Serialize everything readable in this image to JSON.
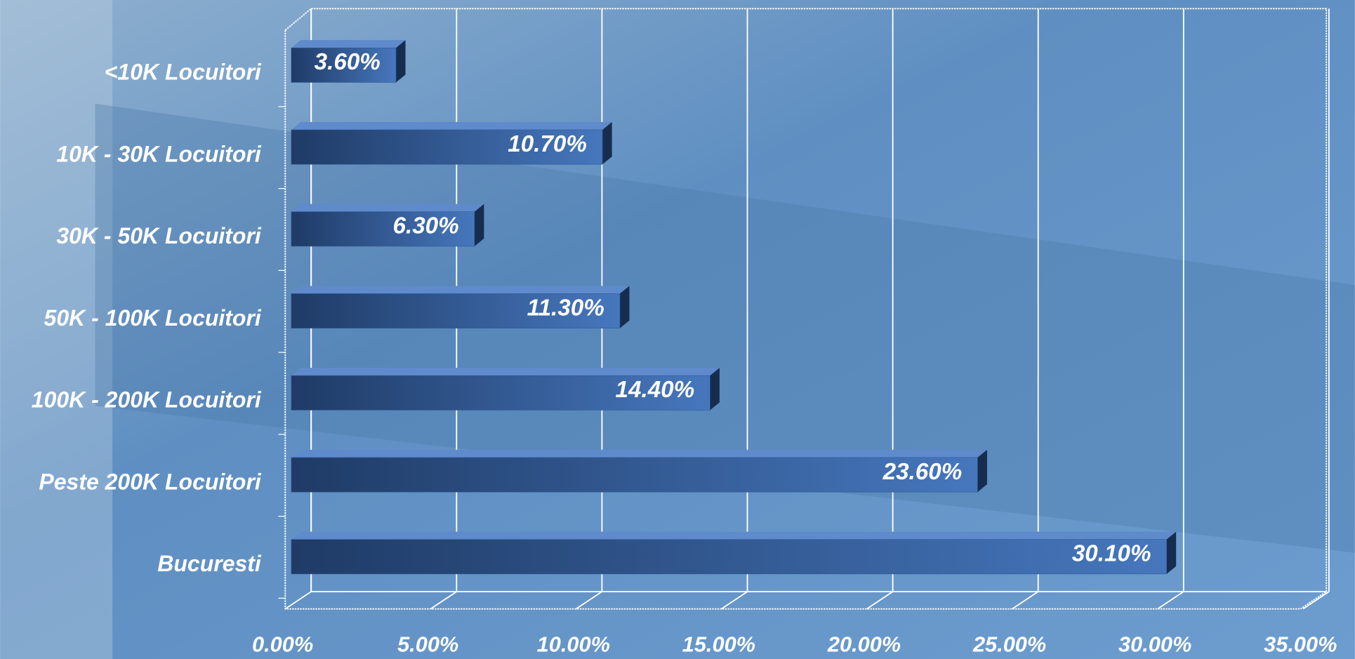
{
  "chart_data": {
    "type": "bar",
    "orientation": "horizontal",
    "categories": [
      "<10K Locuitori",
      "10K - 30K Locuitori",
      "30K - 50K Locuitori",
      "50K - 100K Locuitori",
      "100K - 200K Locuitori",
      "Peste 200K Locuitori",
      "Bucuresti"
    ],
    "values": [
      3.6,
      10.7,
      6.3,
      11.3,
      14.4,
      23.6,
      30.1
    ],
    "value_labels": [
      "3.60%",
      "10.70%",
      "6.30%",
      "11.30%",
      "14.40%",
      "23.60%",
      "30.10%"
    ],
    "color": "#2f5b99",
    "xlim": [
      0,
      35
    ],
    "xticks": [
      {
        "value": 0,
        "label": "0.00%"
      },
      {
        "value": 5,
        "label": "5.00%"
      },
      {
        "value": 10,
        "label": "10.00%"
      },
      {
        "value": 15,
        "label": "15.00%"
      },
      {
        "value": 20,
        "label": "20.00%"
      },
      {
        "value": 25,
        "label": "25.00%"
      },
      {
        "value": 30,
        "label": "30.00%"
      },
      {
        "value": 35,
        "label": "35.00%"
      }
    ],
    "grid": true
  }
}
